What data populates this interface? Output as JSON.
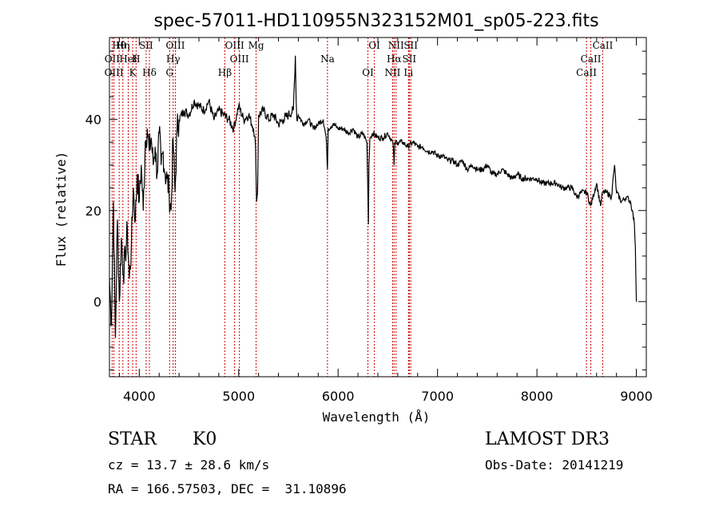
{
  "chart_data": {
    "type": "line",
    "title": "spec-57011-HD110955N323152M01_sp05-223.fits",
    "xlabel": "Wavelength (Å)",
    "ylabel": "Flux (relative)",
    "xlim": [
      3700,
      9100
    ],
    "ylim": [
      -16.5,
      58
    ],
    "xticks": [
      4000,
      5000,
      6000,
      7000,
      8000,
      9000
    ],
    "yticks": [
      0,
      20,
      40
    ],
    "series": [
      {
        "name": "spectrum",
        "x": [
          3700,
          3720,
          3740,
          3760,
          3780,
          3800,
          3820,
          3840,
          3860,
          3880,
          3900,
          3920,
          3940,
          3960,
          3980,
          4000,
          4020,
          4040,
          4060,
          4080,
          4100,
          4120,
          4140,
          4160,
          4180,
          4200,
          4220,
          4240,
          4260,
          4280,
          4300,
          4320,
          4340,
          4360,
          4380,
          4400,
          4450,
          4500,
          4550,
          4600,
          4650,
          4700,
          4750,
          4800,
          4850,
          4900,
          4950,
          5000,
          5050,
          5100,
          5150,
          5170,
          5180,
          5190,
          5200,
          5250,
          5300,
          5350,
          5400,
          5450,
          5500,
          5550,
          5570,
          5578,
          5585,
          5600,
          5650,
          5700,
          5750,
          5800,
          5850,
          5880,
          5893,
          5900,
          5950,
          6000,
          6050,
          6100,
          6150,
          6200,
          6250,
          6290,
          6300,
          6305,
          6310,
          6320,
          6350,
          6400,
          6450,
          6500,
          6550,
          6560,
          6563,
          6570,
          6600,
          6650,
          6700,
          6750,
          6800,
          6850,
          6900,
          6950,
          7000,
          7050,
          7100,
          7150,
          7200,
          7250,
          7300,
          7350,
          7400,
          7450,
          7500,
          7550,
          7600,
          7650,
          7700,
          7750,
          7800,
          7850,
          7900,
          7950,
          8000,
          8050,
          8100,
          8150,
          8200,
          8250,
          8300,
          8350,
          8400,
          8450,
          8500,
          8540,
          8600,
          8640,
          8660,
          8700,
          8750,
          8780,
          8800,
          8850,
          8900,
          8940,
          8960,
          8980,
          8990,
          9000
        ],
        "values": [
          5,
          -5,
          22,
          -8,
          18,
          0,
          14,
          6,
          10,
          16,
          5,
          12,
          25,
          18,
          28,
          22,
          30,
          20,
          35,
          38,
          33,
          36,
          30,
          34,
          28,
          37,
          30,
          33,
          28,
          27,
          24,
          20,
          36,
          24,
          38,
          40,
          42,
          41,
          44,
          43,
          42,
          44,
          40,
          42,
          41,
          40,
          38,
          43,
          40,
          41,
          38,
          34,
          22,
          24,
          41,
          42,
          40,
          41,
          39,
          40,
          41,
          42,
          54,
          44,
          40,
          41,
          39,
          40,
          38,
          39,
          40,
          36,
          29,
          38,
          39,
          38,
          38,
          37,
          38,
          36,
          37,
          35,
          23,
          17,
          30,
          36,
          37,
          36,
          36,
          37,
          35,
          32,
          30,
          35,
          35,
          35,
          34,
          35,
          34,
          34,
          33,
          33,
          32,
          32,
          31,
          31,
          30,
          31,
          29,
          30,
          29,
          29,
          30,
          28,
          28,
          29,
          28,
          27,
          28,
          27,
          27,
          27,
          27,
          26,
          26,
          26,
          26,
          25,
          25,
          25,
          23,
          24,
          24,
          21,
          26,
          21,
          24,
          24,
          23,
          30,
          24,
          22,
          23,
          22,
          20,
          17,
          12,
          0
        ]
      }
    ],
    "lines": [
      {
        "name": "Hθ",
        "wl": 3798
      },
      {
        "name": "OII",
        "wl": 3727
      },
      {
        "name": "OIII",
        "wl": 3745
      },
      {
        "name": "Hη",
        "wl": 3835
      },
      {
        "name": "HeI",
        "wl": 3889
      },
      {
        "name": "K",
        "wl": 3934
      },
      {
        "name": "SII",
        "wl": 4069
      },
      {
        "name": "H",
        "wl": 3968
      },
      {
        "name": "Hδ",
        "wl": 4102
      },
      {
        "name": "OIII",
        "wl": 4363
      },
      {
        "name": "Hγ",
        "wl": 4341
      },
      {
        "name": "G",
        "wl": 4305
      },
      {
        "name": "OIII",
        "wl": 4959
      },
      {
        "name": "OIII",
        "wl": 5007
      },
      {
        "name": "Hβ",
        "wl": 4861
      },
      {
        "name": "Mg",
        "wl": 5175
      },
      {
        "name": "Na",
        "wl": 5893
      },
      {
        "name": "OI",
        "wl": 6300
      },
      {
        "name": "OI",
        "wl": 6364
      },
      {
        "name": "Hα",
        "wl": 6563
      },
      {
        "name": "NII",
        "wl": 6548
      },
      {
        "name": "NII",
        "wl": 6583
      },
      {
        "name": "SII",
        "wl": 6716
      },
      {
        "name": "Li",
        "wl": 6708
      },
      {
        "name": "SII",
        "wl": 6731
      },
      {
        "name": "CaII",
        "wl": 8542
      },
      {
        "name": "CaII",
        "wl": 8498
      },
      {
        "name": "CaII",
        "wl": 8662
      }
    ]
  },
  "info": {
    "object_class": "STAR",
    "subclass": "K0",
    "survey": "LAMOST DR3",
    "cz": "cz = 13.7 ± 28.6 km/s",
    "obs_date": "Obs-Date: 20141219",
    "coords": "RA = 166.57503, DEC =  31.10896"
  }
}
